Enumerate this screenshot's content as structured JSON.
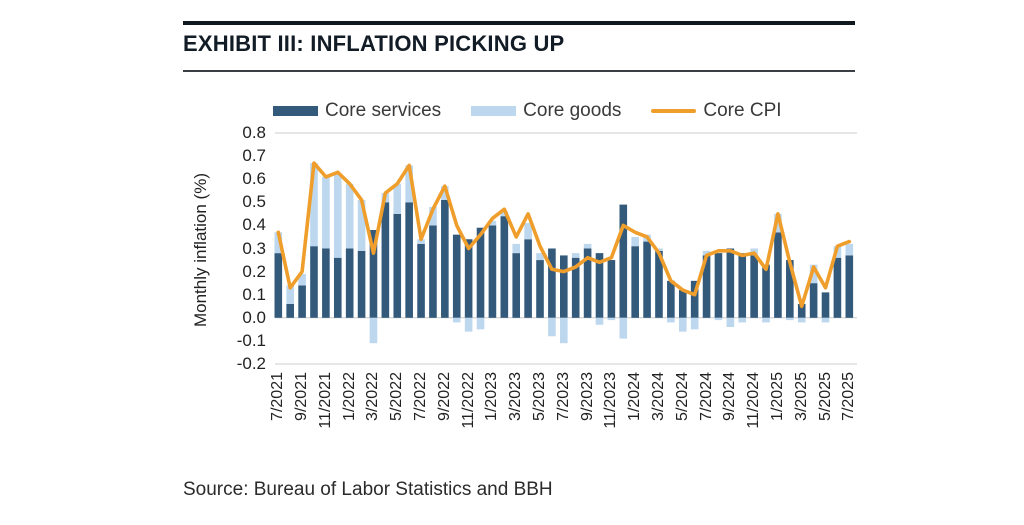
{
  "header": {
    "title": "EXHIBIT III: INFLATION PICKING UP"
  },
  "source": {
    "text": "Source: Bureau of Labor Statistics and BBH"
  },
  "colors": {
    "services": "#33597B",
    "goods": "#BDD7EE",
    "cpi": "#EF9E2C",
    "grid": "#d8d8d8",
    "zero_line": "#cccccc",
    "title_text": "#121c26",
    "axis_text": "#222222"
  },
  "legend": {
    "items": [
      {
        "label": "Core services",
        "swatch": "bar",
        "color": "#33597B"
      },
      {
        "label": "Core goods",
        "swatch": "bar",
        "color": "#BDD7EE"
      },
      {
        "label": "Core CPI",
        "swatch": "line",
        "color": "#EF9E2C"
      }
    ]
  },
  "chart_data": {
    "type": "bar",
    "subtype": "stacked-bars-with-line-overlay",
    "title": "EXHIBIT III: INFLATION PICKING UP",
    "xlabel": "",
    "ylabel": "Monthly inflation (%)",
    "ylim": [
      -0.2,
      0.8
    ],
    "grid": "top and bottom frame lines plus light zero line, no vertical gridlines",
    "legend_position": "top",
    "categories": [
      "7/2021",
      "8/2021",
      "9/2021",
      "10/2021",
      "11/2021",
      "12/2021",
      "1/2022",
      "2/2022",
      "3/2022",
      "4/2022",
      "5/2022",
      "6/2022",
      "7/2022",
      "8/2022",
      "9/2022",
      "10/2022",
      "11/2022",
      "12/2022",
      "1/2023",
      "2/2023",
      "3/2023",
      "4/2023",
      "5/2023",
      "6/2023",
      "7/2023",
      "8/2023",
      "9/2023",
      "10/2023",
      "11/2023",
      "12/2023",
      "1/2024",
      "2/2024",
      "3/2024",
      "4/2024",
      "5/2024",
      "6/2024",
      "7/2024",
      "8/2024",
      "9/2024",
      "10/2024",
      "11/2024",
      "12/2024",
      "1/2025",
      "2/2025",
      "3/2025",
      "4/2025",
      "5/2025",
      "6/2025",
      "7/2025"
    ],
    "xtick_labels": [
      "7/2021",
      "9/2021",
      "11/2021",
      "1/2022",
      "3/2022",
      "5/2022",
      "7/2022",
      "9/2022",
      "11/2022",
      "1/2023",
      "3/2023",
      "5/2023",
      "7/2023",
      "9/2023",
      "11/2023",
      "1/2024",
      "3/2024",
      "5/2024",
      "7/2024",
      "9/2024",
      "11/2024",
      "1/2025",
      "3/2025",
      "5/2025",
      "7/2025"
    ],
    "yticks": [
      "0.8",
      "0.7",
      "0.6",
      "0.5",
      "0.4",
      "0.3",
      "0.2",
      "0.1",
      "0.0",
      "-0.1",
      "-0.2"
    ],
    "series": [
      {
        "name": "Core services",
        "render": "bar",
        "color": "#33597B",
        "values": [
          0.28,
          0.06,
          0.14,
          0.31,
          0.3,
          0.26,
          0.3,
          0.29,
          0.38,
          0.5,
          0.45,
          0.5,
          0.32,
          0.4,
          0.51,
          0.36,
          0.34,
          0.39,
          0.4,
          0.44,
          0.28,
          0.34,
          0.25,
          0.3,
          0.27,
          0.26,
          0.3,
          0.28,
          0.25,
          0.49,
          0.31,
          0.33,
          0.29,
          0.16,
          0.12,
          0.16,
          0.27,
          0.28,
          0.3,
          0.28,
          0.27,
          0.23,
          0.37,
          0.25,
          0.06,
          0.15,
          0.11,
          0.26,
          0.27
        ]
      },
      {
        "name": "Core goods",
        "render": "bar",
        "color": "#BDD7EE",
        "values": [
          0.09,
          0.08,
          0.05,
          0.36,
          0.31,
          0.36,
          0.28,
          0.22,
          -0.11,
          0.04,
          0.13,
          0.16,
          0.02,
          0.08,
          0.06,
          -0.02,
          -0.06,
          -0.05,
          0.02,
          0.02,
          0.04,
          0.07,
          0.03,
          -0.08,
          -0.11,
          0.02,
          0.02,
          -0.03,
          -0.01,
          -0.09,
          0.04,
          0.03,
          0.01,
          -0.02,
          -0.06,
          -0.05,
          0.02,
          -0.01,
          -0.04,
          -0.02,
          0.03,
          -0.02,
          0.08,
          -0.01,
          -0.02,
          0.08,
          -0.02,
          0.05,
          0.05
        ]
      },
      {
        "name": "Core CPI",
        "render": "line",
        "color": "#EF9E2C",
        "values": [
          0.37,
          0.13,
          0.2,
          0.67,
          0.61,
          0.63,
          0.58,
          0.51,
          0.28,
          0.54,
          0.58,
          0.66,
          0.34,
          0.47,
          0.57,
          0.4,
          0.3,
          0.36,
          0.43,
          0.47,
          0.35,
          0.45,
          0.31,
          0.21,
          0.2,
          0.22,
          0.26,
          0.24,
          0.26,
          0.4,
          0.37,
          0.35,
          0.28,
          0.16,
          0.12,
          0.1,
          0.27,
          0.29,
          0.29,
          0.27,
          0.28,
          0.21,
          0.45,
          0.24,
          0.05,
          0.22,
          0.13,
          0.31,
          0.33
        ]
      }
    ]
  }
}
